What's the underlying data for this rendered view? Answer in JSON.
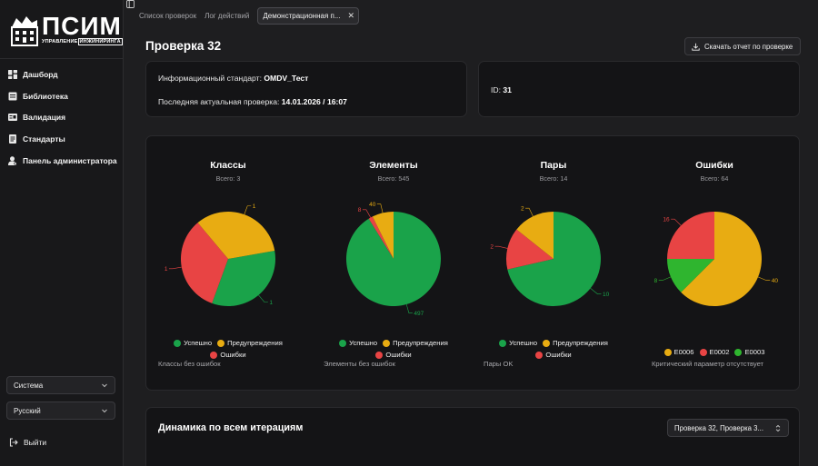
{
  "app": {
    "logo_text": "ПСИМ",
    "logo_sub_a": "УПРАВЛЕНИЕ",
    "logo_sub_b": "ИНЖИНИРИНГА"
  },
  "sidebar": {
    "items": [
      {
        "label": "Дашборд",
        "icon": "dashboard-icon"
      },
      {
        "label": "Библиотека",
        "icon": "library-icon"
      },
      {
        "label": "Валидация",
        "icon": "validation-icon"
      },
      {
        "label": "Стандарты",
        "icon": "standards-icon"
      },
      {
        "label": "Панель администратора",
        "icon": "admin-icon"
      }
    ],
    "theme_select": "Система",
    "language_select": "Русский",
    "logout": "Выйти"
  },
  "tabs": [
    {
      "label": "Список проверок"
    },
    {
      "label": "Лог действий"
    },
    {
      "label": "Демонстрационная п...",
      "active": true
    }
  ],
  "page": {
    "title": "Проверка 32",
    "download_button": "Скачать отчет по проверке"
  },
  "info": {
    "standard_label": "Информационный стандарт:",
    "standard_value": "OMDV_Тест",
    "last_check_label": "Последняя актуальная проверка:",
    "last_check_value": "14.01.2026 / 16:07",
    "id_label": "ID:",
    "id_value": "31"
  },
  "colors": {
    "success": "#1aa34a",
    "warning": "#e8ac12",
    "error": "#e84444",
    "e0003": "#2fb52f"
  },
  "chart_data": [
    {
      "type": "pie",
      "title": "Классы",
      "subtitle": "Всего: 3",
      "slices": [
        {
          "name": "Успешно",
          "value": 1,
          "color": "#1aa34a"
        },
        {
          "name": "Ошибки",
          "value": 1,
          "color": "#e84444"
        },
        {
          "name": "Предупреждения",
          "value": 1,
          "color": "#e8ac12"
        }
      ],
      "legend": [
        "Успешно",
        "Предупреждения",
        "Ошибки"
      ],
      "note": "Классы без ошибок"
    },
    {
      "type": "pie",
      "title": "Элементы",
      "subtitle": "Всего: 545",
      "slices": [
        {
          "name": "Успешно",
          "value": 497,
          "color": "#1aa34a"
        },
        {
          "name": "Ошибки",
          "value": 8,
          "color": "#e84444"
        },
        {
          "name": "Предупреждения",
          "value": 40,
          "color": "#e8ac12"
        }
      ],
      "legend": [
        "Успешно",
        "Предупреждения",
        "Ошибки"
      ],
      "note": "Элементы без ошибок"
    },
    {
      "type": "pie",
      "title": "Пары",
      "subtitle": "Всего: 14",
      "slices": [
        {
          "name": "Успешно",
          "value": 10,
          "color": "#1aa34a"
        },
        {
          "name": "Ошибки",
          "value": 2,
          "color": "#e84444"
        },
        {
          "name": "Предупреждения",
          "value": 2,
          "color": "#e8ac12"
        }
      ],
      "legend": [
        "Успешно",
        "Предупреждения",
        "Ошибки"
      ],
      "note": "Пары OK"
    },
    {
      "type": "pie",
      "title": "Ошибки",
      "subtitle": "Всего: 64",
      "slices": [
        {
          "name": "E0006",
          "value": 40,
          "color": "#e8ac12"
        },
        {
          "name": "E0003",
          "value": 8,
          "color": "#2fb52f"
        },
        {
          "name": "E0002",
          "value": 16,
          "color": "#e84444"
        }
      ],
      "legend": [
        "E0006",
        "E0002",
        "E0003"
      ],
      "note": "Критический параметр отсутствует"
    }
  ],
  "dynamics": {
    "title": "Динамика по всем итерациям",
    "select_value": "Проверка 32, Проверка 3..."
  }
}
